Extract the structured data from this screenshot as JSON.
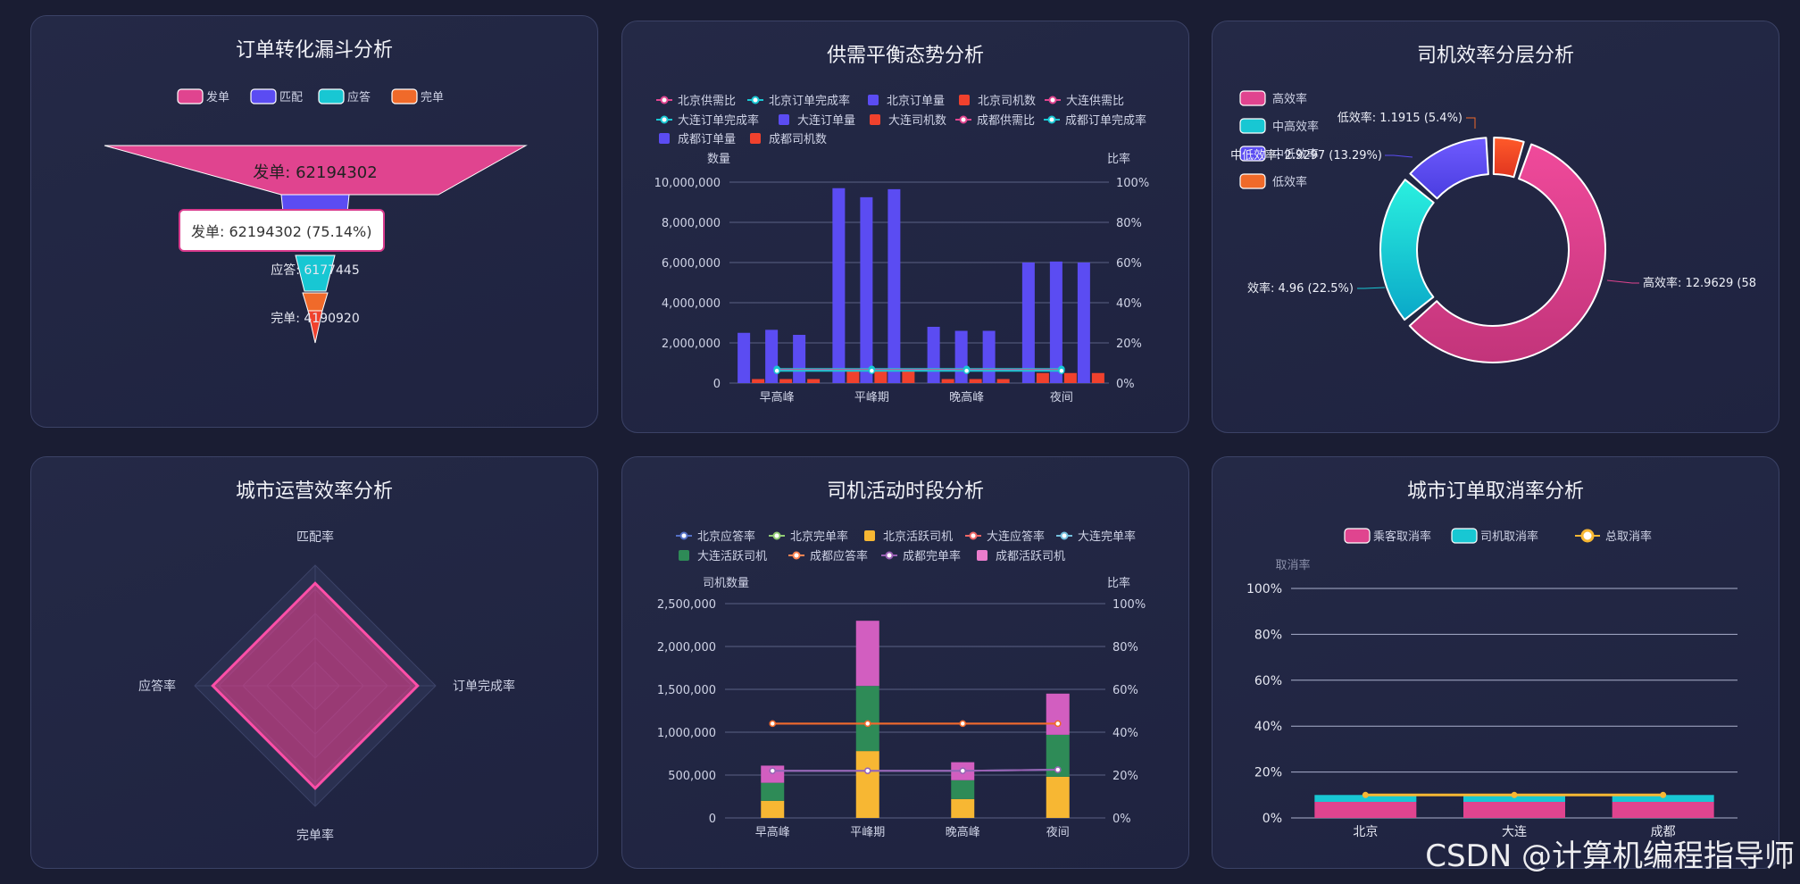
{
  "colors": {
    "pink": "#e0448f",
    "blue": "#5b4cf2",
    "cyan": "#18c7d3",
    "red": "#f0412d",
    "orange": "#f06a2a",
    "yellow": "#f7b733",
    "green": "#2e8b57",
    "purple": "#8f5bd9",
    "magenta": "#d85fc2",
    "grid": "#5a6184",
    "text": "#cfd3e6"
  },
  "watermark": "CSDN @计算机编程指导师",
  "panels": {
    "funnel": {
      "title": "订单转化漏斗分析",
      "tooltip": "发单: 62194302 (75.14%)"
    },
    "supply": {
      "title": "供需平衡态势分析",
      "left_axis_name": "数量",
      "right_axis_name": "比率"
    },
    "driver_eff": {
      "title": "司机效率分层分析"
    },
    "city_eff": {
      "title": "城市运营效率分析"
    },
    "driver_act": {
      "title": "司机活动时段分析",
      "left_axis_name": "司机数量",
      "right_axis_name": "比率"
    },
    "cancel": {
      "title": "城市订单取消率分析",
      "left_axis_name": "取消率"
    }
  },
  "chart_data": [
    {
      "id": "funnel",
      "type": "funnel",
      "title": "订单转化漏斗分析",
      "legend": [
        "发单",
        "匹配",
        "应答",
        "完单"
      ],
      "values": [
        62194302,
        null,
        6177445,
        4190920
      ],
      "labels": [
        "发单: 62194302",
        "",
        "应答: 6177445",
        "完单: 4190920"
      ]
    },
    {
      "id": "supply",
      "type": "bar",
      "title": "供需平衡态势分析",
      "legend": [
        "北京供需比",
        "北京订单完成率",
        "北京订单量",
        "北京司机数",
        "大连供需比",
        "大连订单完成率",
        "大连订单量",
        "大连司机数",
        "成都供需比",
        "成都订单完成率",
        "成都订单量",
        "成都司机数"
      ],
      "categories": [
        "早高峰",
        "平峰期",
        "晚高峰",
        "夜间"
      ],
      "ylim": [
        0,
        10000000
      ],
      "y_ticks": [
        "10,000,000",
        "8,000,000",
        "6,000,000",
        "4,000,000",
        "2,000,000",
        "0"
      ],
      "y2_ticks": [
        "100%",
        "80%",
        "60%",
        "40%",
        "20%",
        "0%"
      ],
      "series": [
        {
          "name": "北京订单量",
          "values": [
            2500000,
            9700000,
            2800000,
            6000000
          ]
        },
        {
          "name": "大连订单量",
          "values": [
            2650000,
            9250000,
            2600000,
            6050000
          ]
        },
        {
          "name": "成都订单量",
          "values": [
            2400000,
            9650000,
            2600000,
            6000000
          ]
        },
        {
          "name": "北京司机数",
          "values": [
            200000,
            600000,
            200000,
            500000
          ]
        },
        {
          "name": "大连司机数",
          "values": [
            200000,
            600000,
            200000,
            500000
          ]
        },
        {
          "name": "成都司机数",
          "values": [
            200000,
            600000,
            200000,
            500000
          ]
        },
        {
          "name": "北京订单完成率",
          "values": [
            7,
            7,
            7,
            7
          ]
        },
        {
          "name": "大连订单完成率",
          "values": [
            7,
            7,
            7,
            7
          ]
        },
        {
          "name": "成都订单完成率",
          "values": [
            7,
            7,
            7,
            7
          ]
        }
      ]
    },
    {
      "id": "driver_eff",
      "type": "pie",
      "title": "司机效率分层分析",
      "legend": [
        "高效率",
        "中高效率",
        "中低效率",
        "低效率"
      ],
      "values": [
        58.8,
        22.5,
        13.29,
        5.4
      ],
      "labels": [
        "高效率: 12.9629 (58",
        "效率: 4.96 (22.5%)",
        "中低效率: 2.9297 (13.29%)",
        "低效率: 1.1915 (5.4%)"
      ]
    },
    {
      "id": "city_eff",
      "type": "radar",
      "title": "城市运营效率分析",
      "indicators": [
        "匹配率",
        "订单完成率",
        "完单率",
        "应答率"
      ],
      "values": [
        0.85,
        0.85,
        0.85,
        0.85
      ]
    },
    {
      "id": "driver_act",
      "type": "bar",
      "title": "司机活动时段分析",
      "legend": [
        "北京应答率",
        "北京完单率",
        "北京活跃司机",
        "大连应答率",
        "大连完单率",
        "大连活跃司机",
        "成都应答率",
        "成都完单率",
        "成都活跃司机"
      ],
      "categories": [
        "早高峰",
        "平峰期",
        "晚高峰",
        "夜间"
      ],
      "ylim": [
        0,
        2500000
      ],
      "y_ticks": [
        "2,500,000",
        "2,000,000",
        "1,500,000",
        "1,000,000",
        "500,000",
        "0"
      ],
      "y2_ticks": [
        "100%",
        "80%",
        "60%",
        "40%",
        "20%",
        "0%"
      ],
      "series": [
        {
          "name": "北京活跃司机",
          "values": [
            200000,
            780000,
            220000,
            480000
          ]
        },
        {
          "name": "大连活跃司机",
          "values": [
            210000,
            760000,
            220000,
            490000
          ]
        },
        {
          "name": "成都活跃司机",
          "values": [
            200000,
            760000,
            210000,
            480000
          ]
        },
        {
          "name": "北京应答率",
          "values": [
            44,
            44,
            44,
            44
          ]
        },
        {
          "name": "大连应答率",
          "values": [
            44,
            44,
            44,
            44
          ]
        },
        {
          "name": "北京完单率",
          "values": [
            22,
            22,
            22,
            22.5
          ]
        },
        {
          "name": "成都完单率",
          "values": [
            22,
            22,
            22,
            22.5
          ]
        }
      ]
    },
    {
      "id": "cancel",
      "type": "bar",
      "title": "城市订单取消率分析",
      "legend": [
        "乘客取消率",
        "司机取消率",
        "总取消率"
      ],
      "categories": [
        "北京",
        "大连",
        "成都"
      ],
      "ylim": [
        0,
        100
      ],
      "y_ticks": [
        "100%",
        "80%",
        "60%",
        "40%",
        "20%",
        "0%"
      ],
      "series": [
        {
          "name": "乘客取消率",
          "values": [
            7,
            7,
            7
          ]
        },
        {
          "name": "司机取消率",
          "values": [
            3,
            3,
            3
          ]
        },
        {
          "name": "总取消率",
          "values": [
            10,
            10,
            10
          ]
        }
      ]
    }
  ]
}
